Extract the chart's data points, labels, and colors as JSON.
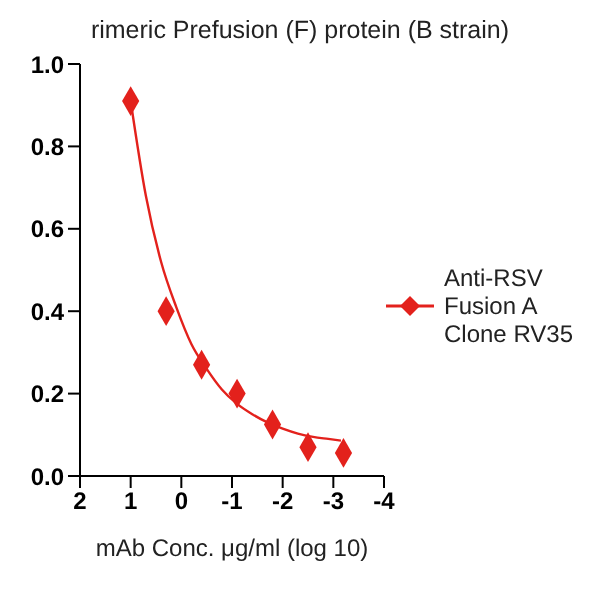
{
  "chart_data": {
    "type": "scatter",
    "title": "rimeric Prefusion (F) protein (B strain)",
    "xlabel": "mAb Conc. μg/ml (log 10)",
    "series": [
      {
        "name": "Anti-RSV Fusion A Clone RV35",
        "color": "#e3211c",
        "marker": "diamond",
        "x": [
          1,
          0.3,
          -0.4,
          -1.1,
          -1.8,
          -2.5,
          -3.2
        ],
        "values": [
          0.91,
          0.4,
          0.27,
          0.2,
          0.125,
          0.07,
          0.056
        ]
      },
      {
        "type": "line",
        "color": "#e3211c",
        "marker": "none",
        "x": [
          1,
          0.7,
          0.4,
          0.1,
          -0.2,
          -0.5,
          -0.8,
          -1.1,
          -1.4,
          -1.7,
          -2.0,
          -2.3,
          -2.6,
          -2.9,
          -3.15
        ],
        "values": [
          0.91,
          0.68,
          0.52,
          0.41,
          0.32,
          0.26,
          0.21,
          0.175,
          0.15,
          0.13,
          0.115,
          0.103,
          0.095,
          0.09,
          0.086
        ]
      }
    ],
    "xlim": [
      2,
      -4
    ],
    "xticks": [
      2,
      1,
      0,
      -1,
      -2,
      -3,
      -4
    ],
    "ylim": [
      0,
      1
    ],
    "yticks": [
      {
        "value": 0,
        "label": "0.0"
      },
      {
        "value": 0.2,
        "label": "0.2"
      },
      {
        "value": 0.4,
        "label": "0.4"
      },
      {
        "value": 0.6,
        "label": "0.6"
      },
      {
        "value": 0.8,
        "label": "0.8"
      },
      {
        "value": 1,
        "label": "1.0"
      }
    ],
    "grid": false,
    "legend": "right"
  }
}
